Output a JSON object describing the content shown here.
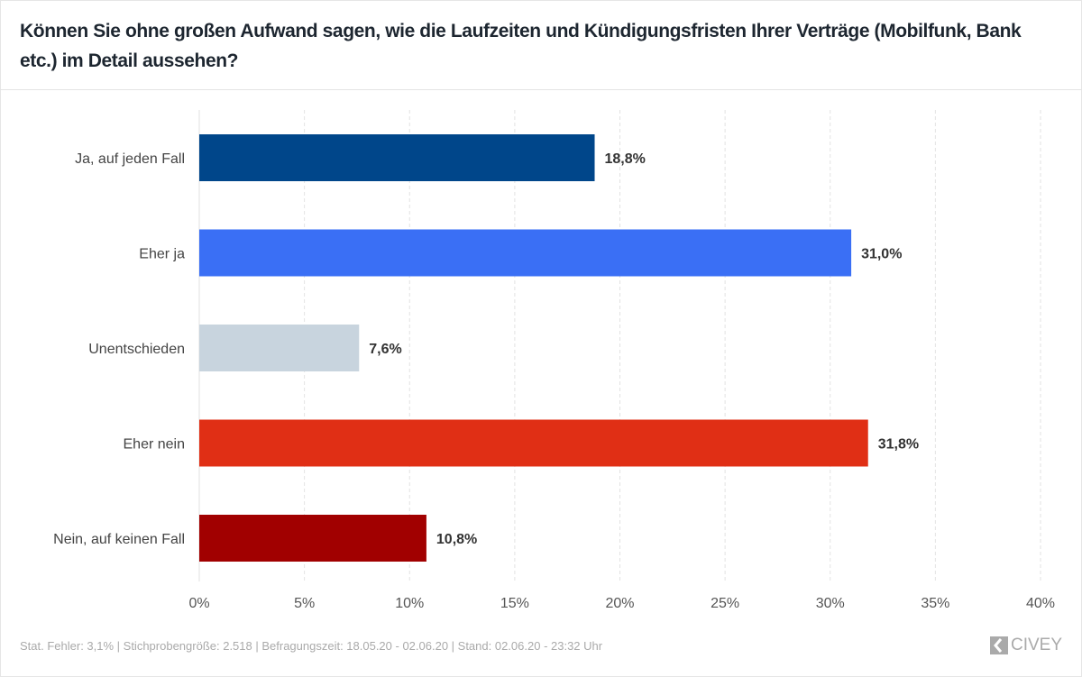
{
  "chart_data": {
    "type": "bar",
    "orientation": "horizontal",
    "title": "Können Sie ohne großen Aufwand sagen, wie die Laufzeiten und Kündigungsfristen Ihrer Verträge (Mobilfunk, Bank etc.) im Detail aussehen?",
    "categories": [
      "Ja, auf jeden Fall",
      "Eher ja",
      "Unentschieden",
      "Eher nein",
      "Nein, auf keinen Fall"
    ],
    "values": [
      18.8,
      31.0,
      7.6,
      31.8,
      10.8
    ],
    "value_labels": [
      "18,8%",
      "31,0%",
      "7,6%",
      "31,8%",
      "10,8%"
    ],
    "colors": [
      "#00468a",
      "#3a6ff5",
      "#c8d4de",
      "#e02f15",
      "#a10000"
    ],
    "xlim": [
      0,
      40
    ],
    "ticks": [
      0,
      5,
      10,
      15,
      20,
      25,
      30,
      35,
      40
    ],
    "tick_labels": [
      "0%",
      "5%",
      "10%",
      "15%",
      "20%",
      "25%",
      "30%",
      "35%",
      "40%"
    ],
    "grid": true
  },
  "footer": "Stat. Fehler: 3,1% | Stichprobengröße: 2.518 | Befragungszeit: 18.05.20 - 02.06.20 | Stand: 02.06.20 - 23:32 Uhr",
  "logo": "CIVEY"
}
